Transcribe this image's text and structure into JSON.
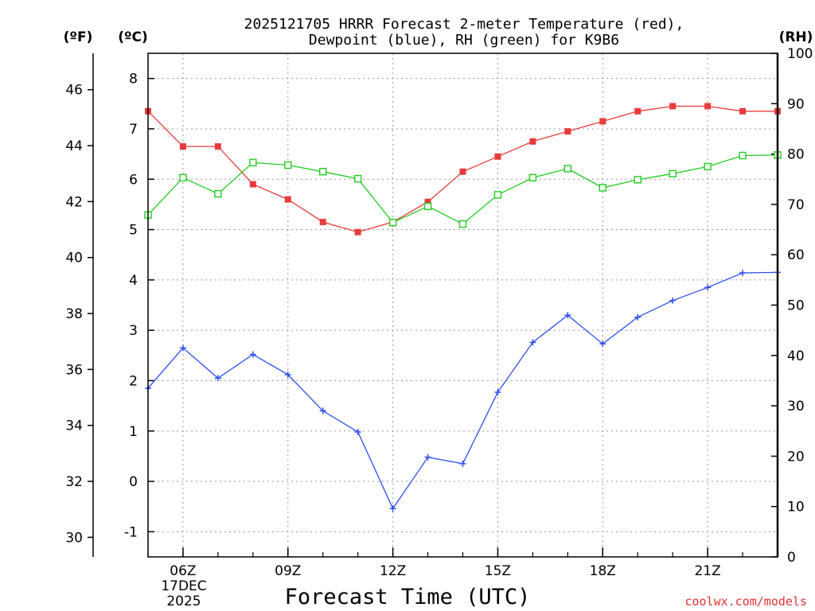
{
  "chart_data": {
    "type": "line",
    "title_line1": "2025121705 HRRR Forecast 2-meter Temperature (red),",
    "title_line2": "Dewpoint (blue), RH (green) for K9B6",
    "xlabel": "Forecast Time (UTC)",
    "credit": "coolwx.com/models",
    "units": {
      "f": "(ºF)",
      "c": "(ºC)",
      "rh": "(RH)"
    },
    "x_range": [
      5,
      23
    ],
    "x_ticks": [
      {
        "hour": 6,
        "label": "06Z"
      },
      {
        "hour": 9,
        "label": "09Z"
      },
      {
        "hour": 12,
        "label": "12Z"
      },
      {
        "hour": 15,
        "label": "15Z"
      },
      {
        "hour": 18,
        "label": "18Z"
      },
      {
        "hour": 21,
        "label": "21Z"
      }
    ],
    "date_label": [
      "17DEC",
      "2025"
    ],
    "x": [
      5,
      6,
      7,
      8,
      9,
      10,
      11,
      12,
      13,
      14,
      15,
      16,
      17,
      18,
      19,
      20,
      21,
      22,
      23
    ],
    "c_range": [
      -1.5,
      8.5
    ],
    "c_ticks": [
      "-1",
      "0",
      "1",
      "2",
      "3",
      "4",
      "5",
      "6",
      "7",
      "8"
    ],
    "f_ticks": [
      "30",
      "32",
      "34",
      "36",
      "38",
      "40",
      "42",
      "44",
      "46"
    ],
    "rh_range": [
      0,
      100
    ],
    "rh_ticks": [
      "0",
      "10",
      "20",
      "30",
      "40",
      "50",
      "60",
      "70",
      "80",
      "90",
      "100"
    ],
    "series": [
      {
        "name": "Temperature",
        "axis": "c",
        "color": "#e83b3b",
        "marker": "filled-square",
        "values": [
          7.35,
          6.65,
          6.65,
          5.9,
          5.6,
          5.15,
          4.95,
          5.15,
          5.55,
          6.15,
          6.45,
          6.75,
          6.95,
          7.15,
          7.35,
          7.45,
          7.45,
          7.35,
          7.35
        ]
      },
      {
        "name": "Dewpoint",
        "axis": "c",
        "color": "#2f4ff0",
        "marker": "plus",
        "values": [
          1.85,
          2.65,
          2.05,
          2.52,
          2.12,
          1.4,
          0.98,
          -0.54,
          0.48,
          0.35,
          1.77,
          2.76,
          3.3,
          2.73,
          3.26,
          3.59,
          3.85,
          4.14,
          4.15
        ]
      },
      {
        "name": "RH",
        "axis": "rh",
        "color": "#22cc22",
        "marker": "open-square",
        "values": [
          67.9,
          75.3,
          72.1,
          78.3,
          77.8,
          76.5,
          75.1,
          66.4,
          69.6,
          66.1,
          71.9,
          75.3,
          77.1,
          73.3,
          74.9,
          76.1,
          77.5,
          79.7,
          79.8
        ]
      }
    ]
  }
}
